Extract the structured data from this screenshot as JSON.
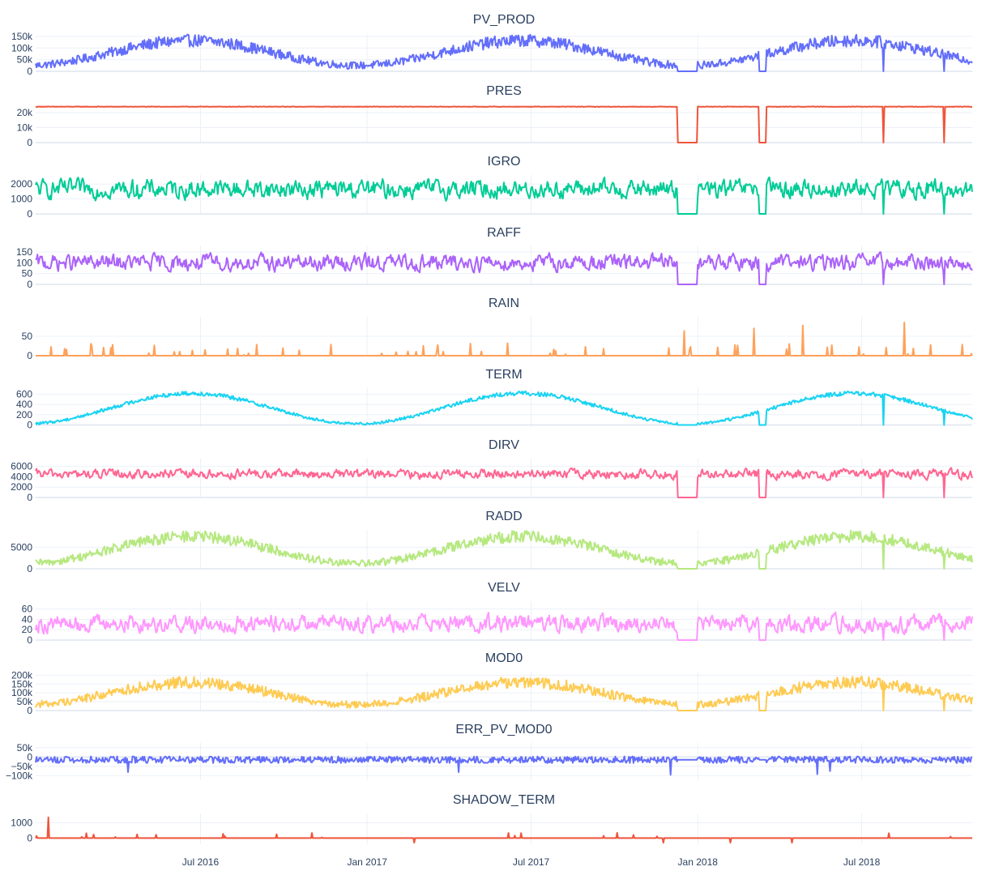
{
  "chart_data": {
    "type": "line",
    "shared_x": true,
    "x_range": [
      "2016-01-01",
      "2018-10-31"
    ],
    "x_tick_labels": [
      {
        "label": "Jul 2016",
        "date": "2016-07-01"
      },
      {
        "label": "Jan 2017",
        "date": "2017-01-01"
      },
      {
        "label": "Jul 2017",
        "date": "2017-07-01"
      },
      {
        "label": "Jan 2018",
        "date": "2018-01-01"
      },
      {
        "label": "Jul 2018",
        "date": "2018-07-01"
      }
    ],
    "grid": true,
    "gaps": [
      {
        "start": "2017-12-10",
        "end": "2017-12-31"
      },
      {
        "start": "2018-03-10",
        "end": "2018-03-17"
      }
    ],
    "dips": [
      "2018-07-25",
      "2018-09-30"
    ],
    "panels": [
      {
        "name": "PV_PROD",
        "color": "#636efa",
        "ylim": [
          0,
          160000
        ],
        "yticks": [
          {
            "v": 0,
            "t": "0"
          },
          {
            "v": 50000,
            "t": "50k"
          },
          {
            "v": 100000,
            "t": "100k"
          },
          {
            "v": 150000,
            "t": "150k"
          }
        ],
        "series": {
          "kind": "seasonal",
          "base": 85000,
          "amp": 55000,
          "noise": 38000,
          "min": 0
        }
      },
      {
        "name": "PRES",
        "color": "#ef553b",
        "ylim": [
          0,
          26000
        ],
        "yticks": [
          {
            "v": 0,
            "t": "0"
          },
          {
            "v": 10000,
            "t": "10k"
          },
          {
            "v": 20000,
            "t": "20k"
          }
        ],
        "series": {
          "kind": "flat",
          "base": 24000,
          "amp": 0,
          "noise": 300,
          "min": 0
        }
      },
      {
        "name": "IGRO",
        "color": "#00cc96",
        "ylim": [
          0,
          2600
        ],
        "yticks": [
          {
            "v": 0,
            "t": "0"
          },
          {
            "v": 1000,
            "t": "1000"
          },
          {
            "v": 2000,
            "t": "2000"
          }
        ],
        "series": {
          "kind": "noise",
          "base": 1650,
          "amp": 0,
          "noise": 900,
          "min": 0
        }
      },
      {
        "name": "RAFF",
        "color": "#ab63fa",
        "ylim": [
          0,
          180
        ],
        "yticks": [
          {
            "v": 0,
            "t": "0"
          },
          {
            "v": 50,
            "t": "50"
          },
          {
            "v": 100,
            "t": "100"
          },
          {
            "v": 150,
            "t": "150"
          }
        ],
        "series": {
          "kind": "noise",
          "base": 100,
          "amp": 0,
          "noise": 55,
          "min": 0
        }
      },
      {
        "name": "RAIN",
        "color": "#ffa15a",
        "ylim": [
          0,
          100
        ],
        "yticks": [
          {
            "v": 0,
            "t": "0"
          },
          {
            "v": 50,
            "t": "50"
          }
        ],
        "series": {
          "kind": "rain",
          "base": 0,
          "amp": 0,
          "noise": 0,
          "min": 0
        }
      },
      {
        "name": "TERM",
        "color": "#19d3f3",
        "ylim": [
          -40,
          720
        ],
        "yticks": [
          {
            "v": 0,
            "t": "0"
          },
          {
            "v": 200,
            "t": "200"
          },
          {
            "v": 400,
            "t": "400"
          },
          {
            "v": 600,
            "t": "600"
          }
        ],
        "series": {
          "kind": "seasonal",
          "base": 330,
          "amp": 300,
          "noise": 60,
          "min": -40
        }
      },
      {
        "name": "DIRV",
        "color": "#ff6692",
        "ylim": [
          0,
          7500
        ],
        "yticks": [
          {
            "v": 0,
            "t": "0"
          },
          {
            "v": 2000,
            "t": "2000"
          },
          {
            "v": 4000,
            "t": "4000"
          },
          {
            "v": 6000,
            "t": "6000"
          }
        ],
        "series": {
          "kind": "noise",
          "base": 4500,
          "amp": 0,
          "noise": 1300,
          "min": 0
        }
      },
      {
        "name": "RADD",
        "color": "#b6e880",
        "ylim": [
          0,
          9000
        ],
        "yticks": [
          {
            "v": 0,
            "t": "0"
          },
          {
            "v": 5000,
            "t": "5000"
          }
        ],
        "series": {
          "kind": "seasonal",
          "base": 4700,
          "amp": 3200,
          "noise": 2000,
          "min": 0
        }
      },
      {
        "name": "VELV",
        "color": "#ff97ff",
        "ylim": [
          0,
          75
        ],
        "yticks": [
          {
            "v": 0,
            "t": "0"
          },
          {
            "v": 20,
            "t": "20"
          },
          {
            "v": 40,
            "t": "40"
          },
          {
            "v": 60,
            "t": "60"
          }
        ],
        "series": {
          "kind": "noise",
          "base": 32,
          "amp": 0,
          "noise": 24,
          "min": 0
        }
      },
      {
        "name": "MOD0",
        "color": "#fecb52",
        "ylim": [
          0,
          220000
        ],
        "yticks": [
          {
            "v": 0,
            "t": "0"
          },
          {
            "v": 50000,
            "t": "50k"
          },
          {
            "v": 100000,
            "t": "100k"
          },
          {
            "v": 150000,
            "t": "150k"
          },
          {
            "v": 200000,
            "t": "200k"
          }
        ],
        "series": {
          "kind": "seasonal",
          "base": 105000,
          "amp": 65000,
          "noise": 48000,
          "min": 0
        }
      },
      {
        "name": "ERR_PV_MOD0",
        "color": "#636efa",
        "ylim": [
          -125000,
          75000
        ],
        "yticks": [
          {
            "v": -100000,
            "t": "−100k"
          },
          {
            "v": -50000,
            "t": "−50k"
          },
          {
            "v": 0,
            "t": "0"
          },
          {
            "v": 50000,
            "t": "50k"
          }
        ],
        "series": {
          "kind": "error",
          "base": -15000,
          "amp": 0,
          "noise": 18000,
          "min": -125000
        }
      },
      {
        "name": "SHADOW_TERM",
        "color": "#ef553b",
        "ylim": [
          -400,
          1600
        ],
        "yticks": [
          {
            "v": 0,
            "t": "0"
          },
          {
            "v": 1000,
            "t": "1000"
          }
        ],
        "series": {
          "kind": "shadow",
          "base": 0,
          "amp": 0,
          "noise": 0,
          "min": -400
        }
      }
    ]
  }
}
